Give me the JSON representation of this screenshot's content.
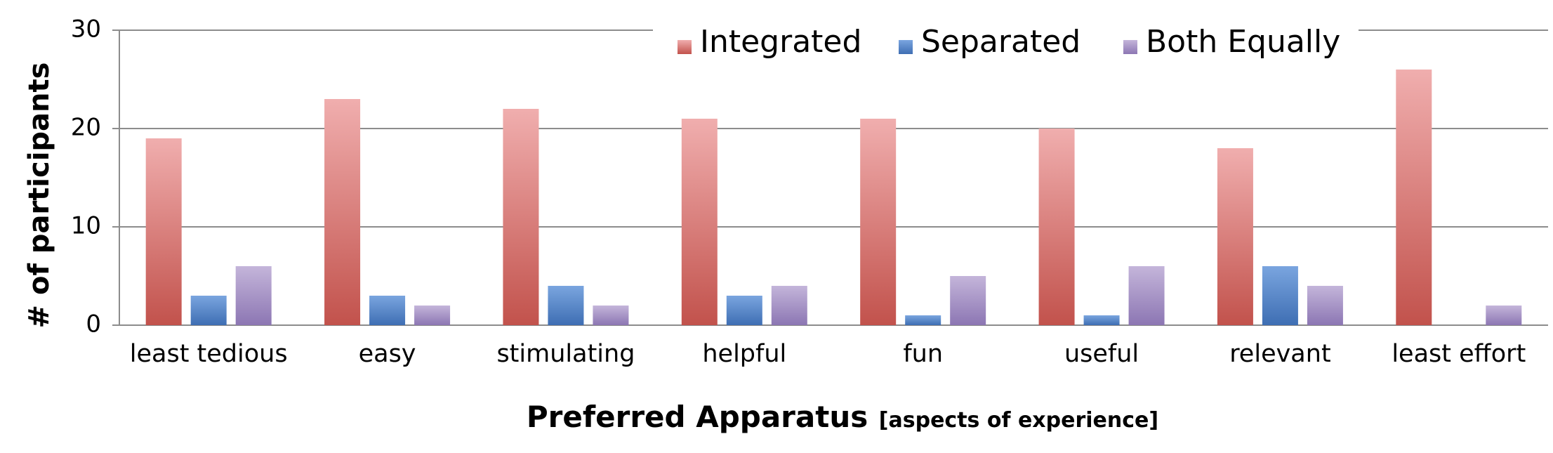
{
  "chart_data": {
    "type": "bar",
    "categories": [
      "least tedious",
      "easy",
      "stimulating",
      "helpful",
      "fun",
      "useful",
      "relevant",
      "least effort"
    ],
    "series": [
      {
        "name": "Integrated",
        "values": [
          19,
          23,
          22,
          21,
          21,
          20,
          18,
          26
        ]
      },
      {
        "name": "Separated",
        "values": [
          3,
          3,
          4,
          3,
          1,
          1,
          6,
          0
        ]
      },
      {
        "name": "Both Equally",
        "values": [
          6,
          2,
          2,
          4,
          5,
          6,
          4,
          2
        ]
      }
    ],
    "colors": {
      "Integrated": [
        "#f0aeae",
        "#c2524c"
      ],
      "Separated": [
        "#7aa5df",
        "#3e6eb3"
      ],
      "Both Equally": [
        "#c4b5da",
        "#8c76b3"
      ]
    },
    "ylabel": "# of participants",
    "xlabel_main": "Preferred Apparatus",
    "xlabel_sub": "[aspects of experience]",
    "ylim": [
      0,
      30
    ],
    "yticks": [
      0,
      10,
      20,
      30
    ],
    "grid": true,
    "legend_position": "top-right"
  }
}
